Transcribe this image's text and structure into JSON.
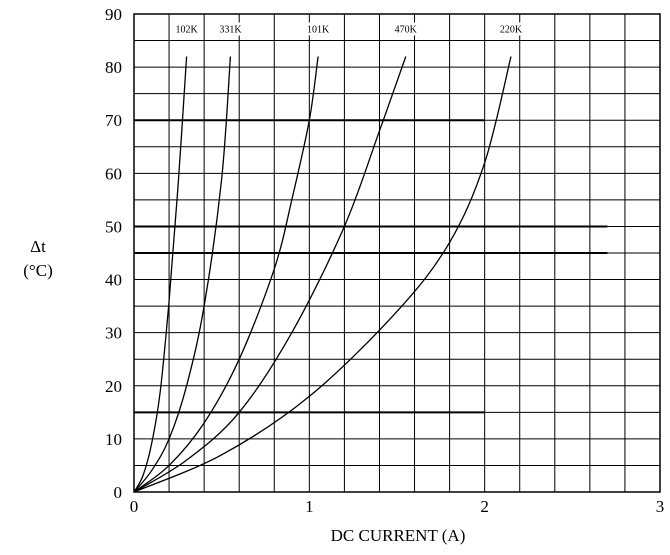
{
  "chart_data": {
    "type": "line",
    "title": "",
    "xlabel": "DC CURRENT (A)",
    "ylabel_line1": "Δt",
    "ylabel_line2": "(°C)",
    "xlim": [
      0,
      3
    ],
    "ylim": [
      0,
      90
    ],
    "x_ticks": [
      0,
      1,
      2,
      3
    ],
    "y_ticks": [
      0,
      10,
      20,
      30,
      40,
      50,
      60,
      70,
      80,
      90
    ],
    "grid": true,
    "legend": "none",
    "line_color": "#000000",
    "series": [
      {
        "name": "102K",
        "x": [
          0,
          0.05,
          0.1,
          0.15,
          0.2,
          0.25,
          0.3
        ],
        "y": [
          0,
          3,
          9,
          19,
          36,
          57,
          82
        ]
      },
      {
        "name": "331K",
        "x": [
          0,
          0.1,
          0.2,
          0.3,
          0.4,
          0.5,
          0.55
        ],
        "y": [
          0,
          4,
          10,
          20,
          35,
          59,
          82
        ]
      },
      {
        "name": "101K",
        "x": [
          0,
          0.2,
          0.4,
          0.6,
          0.8,
          0.9,
          1.0,
          1.05
        ],
        "y": [
          0,
          5,
          13,
          25,
          42,
          55,
          70,
          82
        ]
      },
      {
        "name": "470K",
        "x": [
          0,
          0.3,
          0.6,
          0.9,
          1.2,
          1.4,
          1.55
        ],
        "y": [
          0,
          6,
          15,
          30,
          50,
          68,
          82
        ]
      },
      {
        "name": "220K",
        "x": [
          0,
          0.5,
          1.0,
          1.5,
          1.8,
          2.0,
          2.15
        ],
        "y": [
          0,
          7,
          18,
          34,
          47,
          62,
          82
        ]
      }
    ]
  }
}
